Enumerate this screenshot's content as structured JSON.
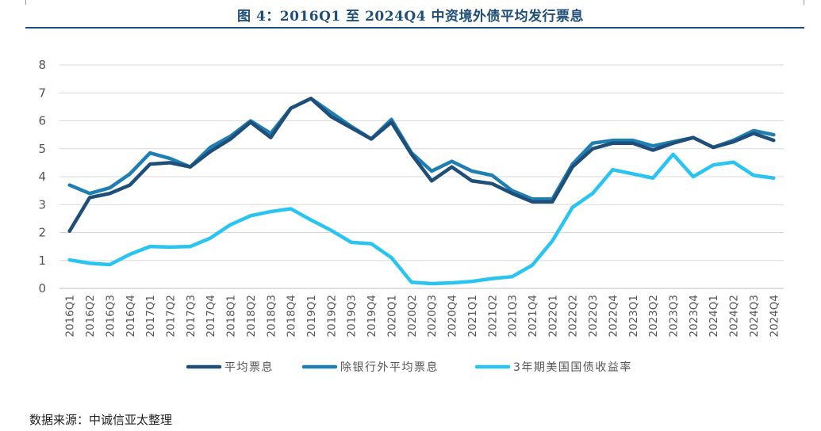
{
  "title": "图 4：2016Q1 至 2024Q4 中资境外债平均发行票息",
  "source": "数据来源：中诚信亚太整理",
  "chart_data": {
    "type": "line",
    "categories": [
      "2016Q1",
      "2016Q2",
      "2016Q3",
      "2016Q4",
      "2017Q1",
      "2017Q2",
      "2017Q3",
      "2017Q4",
      "2018Q1",
      "2018Q2",
      "2018Q3",
      "2018Q4",
      "2019Q1",
      "2019Q2",
      "2019Q3",
      "2019Q4",
      "2020Q1",
      "2020Q2",
      "2020Q3",
      "2020Q4",
      "2021Q1",
      "2021Q2",
      "2021Q3",
      "2021Q4",
      "2022Q1",
      "2022Q2",
      "2022Q3",
      "2022Q4",
      "2023Q1",
      "2023Q2",
      "2023Q3",
      "2023Q4",
      "2024Q1",
      "2024Q2",
      "2024Q3",
      "2024Q4"
    ],
    "ylim": [
      0,
      8
    ],
    "yticks": [
      0,
      1,
      2,
      3,
      4,
      5,
      6,
      7,
      8
    ],
    "grid": true,
    "legend_position": "bottom",
    "series": [
      {
        "name": "平均票息",
        "color": "#1f4e79",
        "values": [
          2.05,
          3.25,
          3.4,
          3.7,
          4.45,
          4.5,
          4.35,
          4.9,
          5.35,
          5.95,
          5.4,
          6.45,
          6.8,
          6.15,
          5.75,
          5.35,
          5.95,
          4.8,
          3.85,
          4.35,
          3.85,
          3.75,
          3.4,
          3.1,
          3.1,
          4.35,
          5.0,
          5.2,
          5.2,
          4.95,
          5.2,
          5.4,
          5.05,
          5.25,
          5.55,
          5.3
        ]
      },
      {
        "name": "除银行外平均票息",
        "color": "#1f7fb3",
        "values": [
          3.7,
          3.4,
          3.6,
          4.1,
          4.85,
          4.65,
          4.35,
          5.05,
          5.45,
          6.0,
          5.55,
          6.45,
          6.8,
          6.3,
          5.8,
          5.35,
          6.05,
          4.85,
          4.2,
          4.55,
          4.2,
          4.05,
          3.5,
          3.2,
          3.2,
          4.45,
          5.2,
          5.3,
          5.3,
          5.1,
          5.25,
          5.4,
          5.05,
          5.3,
          5.65,
          5.5
        ]
      },
      {
        "name": "3年期美国国债收益率",
        "color": "#29c4ef",
        "values": [
          1.02,
          0.9,
          0.85,
          1.22,
          1.5,
          1.48,
          1.5,
          1.8,
          2.28,
          2.6,
          2.75,
          2.85,
          2.45,
          2.08,
          1.65,
          1.6,
          1.1,
          0.22,
          0.17,
          0.2,
          0.25,
          0.35,
          0.42,
          0.83,
          1.7,
          2.9,
          3.4,
          4.25,
          4.1,
          3.95,
          4.8,
          4.0,
          4.42,
          4.52,
          4.05,
          3.95
        ]
      }
    ]
  }
}
